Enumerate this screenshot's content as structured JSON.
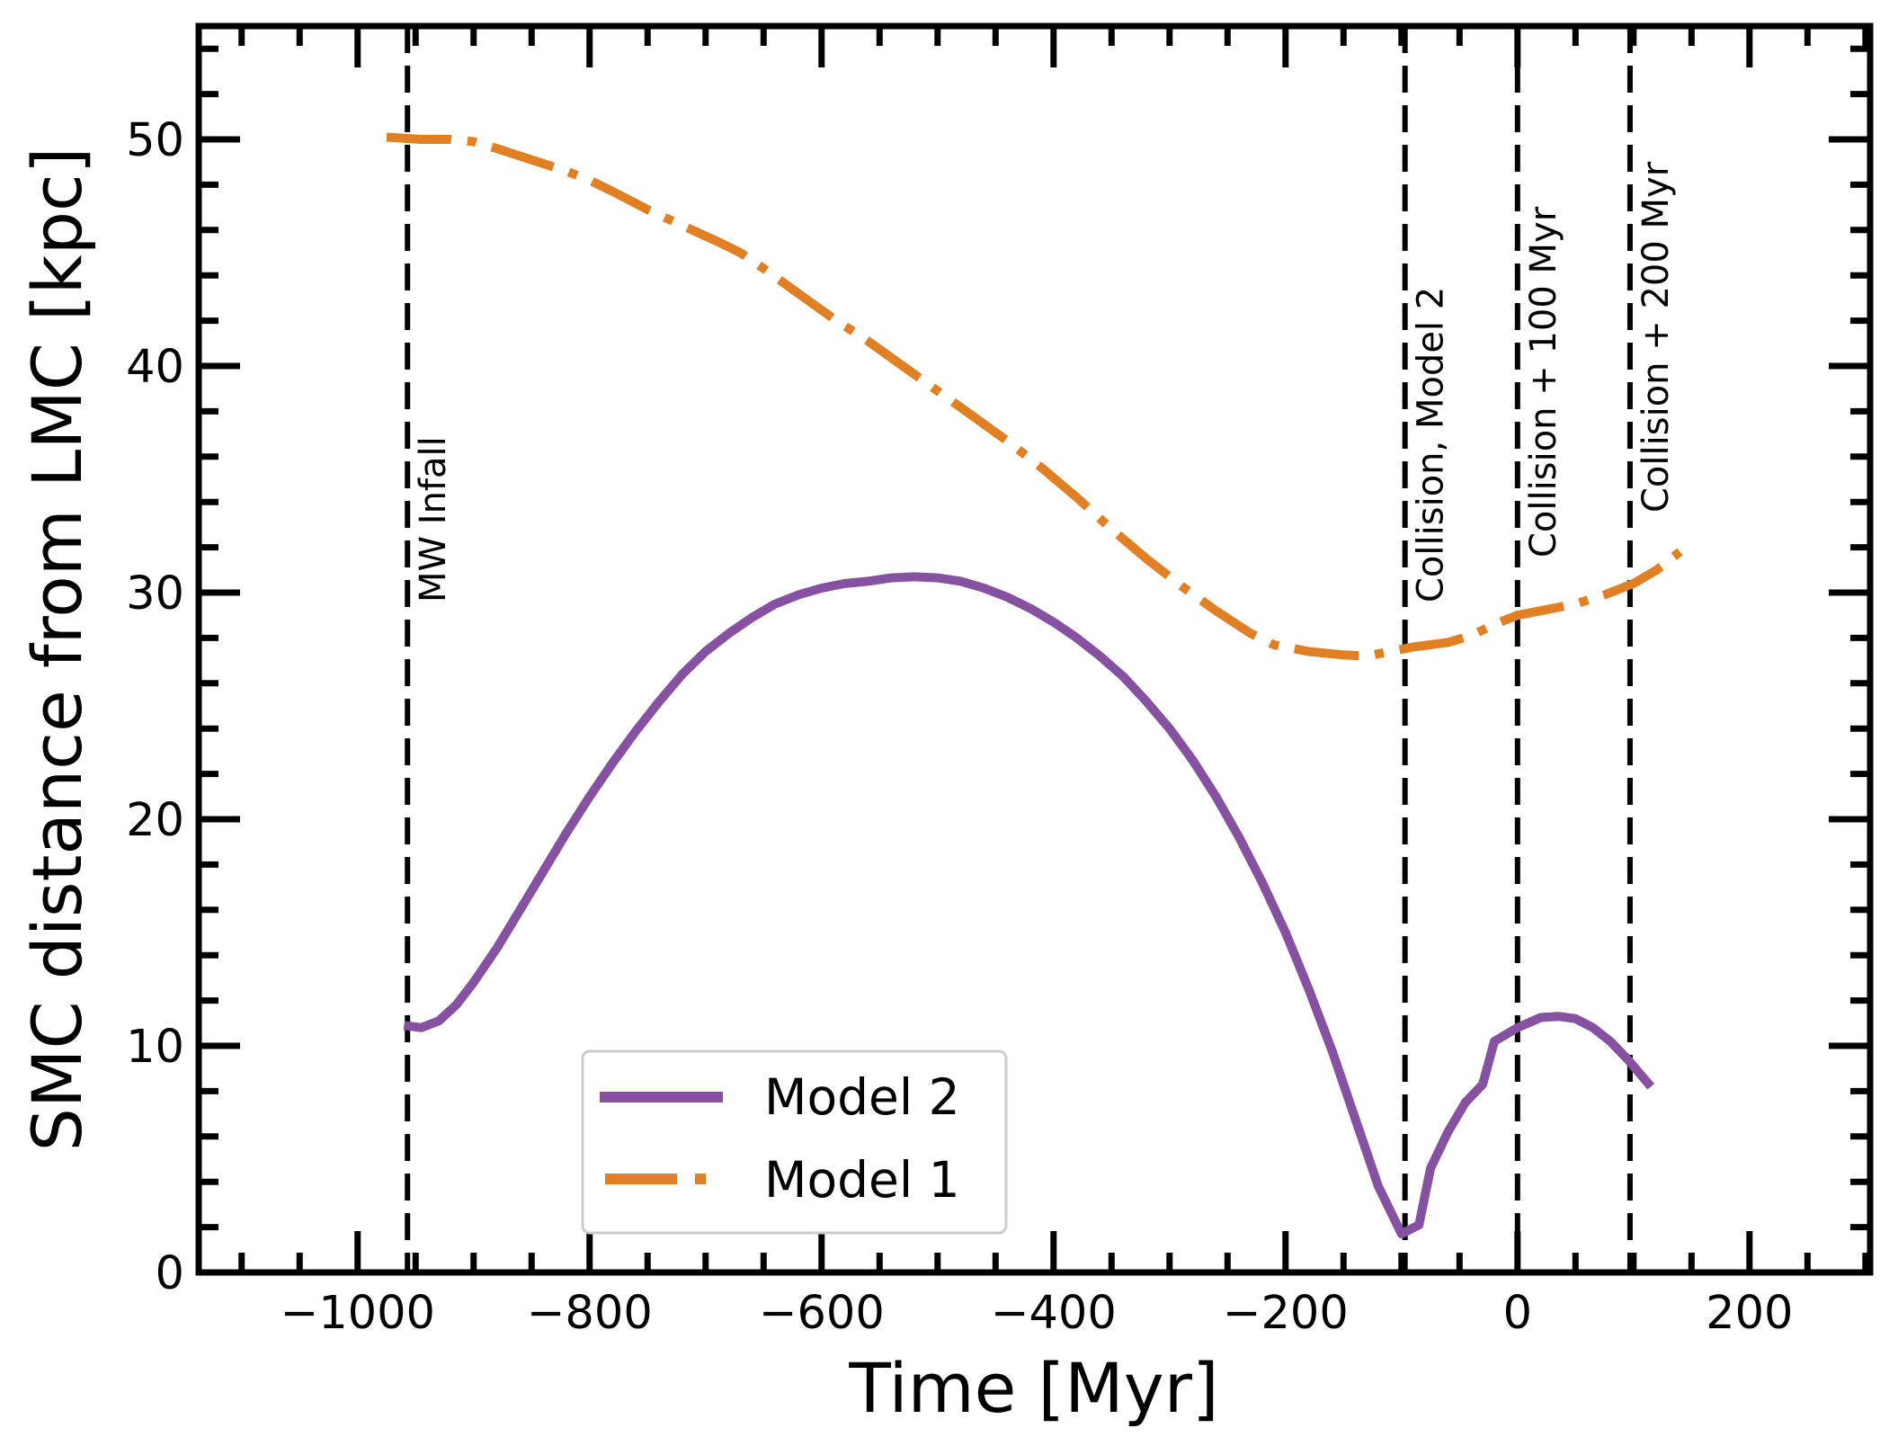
{
  "chart_data": {
    "type": "line",
    "title": "",
    "xlabel": "Time [Myr]",
    "ylabel": "SMC distance from LMC [kpc]",
    "xlim": [
      -1137,
      304
    ],
    "ylim": [
      0,
      55
    ],
    "grid": false,
    "x_major_ticks": [
      -1000,
      -800,
      -600,
      -400,
      -200,
      0,
      200
    ],
    "x_tick_labels": [
      "−1000",
      "−800",
      "−600",
      "−400",
      "−200",
      "0",
      "200"
    ],
    "x_minor_step": 50,
    "y_major_ticks": [
      0,
      10,
      20,
      30,
      40,
      50
    ],
    "y_tick_labels": [
      "0",
      "10",
      "20",
      "30",
      "40",
      "50"
    ],
    "y_minor_step": 2,
    "legend": {
      "placement": "lower-center-left",
      "entries": [
        "Model 2",
        "Model 1"
      ]
    },
    "series": [
      {
        "name": "Model 2",
        "color": "#8551a0",
        "style": "solid",
        "x": [
          -960,
          -945,
          -930,
          -915,
          -900,
          -880,
          -860,
          -840,
          -820,
          -800,
          -780,
          -760,
          -740,
          -720,
          -700,
          -680,
          -660,
          -640,
          -620,
          -600,
          -580,
          -560,
          -540,
          -520,
          -500,
          -480,
          -460,
          -440,
          -420,
          -400,
          -380,
          -360,
          -340,
          -320,
          -300,
          -280,
          -260,
          -240,
          -220,
          -200,
          -180,
          -160,
          -140,
          -120,
          -100,
          -85,
          -75,
          -60,
          -45,
          -30,
          -20,
          0,
          20,
          35,
          50,
          65,
          80,
          95,
          115
        ],
        "y": [
          10.9,
          10.8,
          11.1,
          11.8,
          12.8,
          14.3,
          16.0,
          17.7,
          19.4,
          21.0,
          22.5,
          23.9,
          25.2,
          26.4,
          27.4,
          28.2,
          28.9,
          29.5,
          29.9,
          30.2,
          30.4,
          30.5,
          30.65,
          30.7,
          30.65,
          30.5,
          30.2,
          29.8,
          29.3,
          28.7,
          28.0,
          27.2,
          26.3,
          25.2,
          24.0,
          22.6,
          21.0,
          19.2,
          17.2,
          15.0,
          12.5,
          9.8,
          6.8,
          3.8,
          1.7,
          2.1,
          4.6,
          6.2,
          7.5,
          8.3,
          10.2,
          10.8,
          11.25,
          11.3,
          11.2,
          10.8,
          10.2,
          9.4,
          8.2
        ]
      },
      {
        "name": "Model 1",
        "color": "#e07f23",
        "style": "dashdot",
        "x": [
          -975,
          -945,
          -920,
          -900,
          -880,
          -850,
          -820,
          -800,
          -780,
          -750,
          -720,
          -690,
          -670,
          -650,
          -620,
          -590,
          -560,
          -530,
          -500,
          -470,
          -440,
          -410,
          -380,
          -350,
          -320,
          -290,
          -260,
          -230,
          -210,
          -180,
          -150,
          -130,
          -110,
          -90,
          -60,
          -40,
          -20,
          0,
          20,
          50,
          75,
          100,
          120,
          140
        ],
        "y": [
          50.1,
          50.0,
          50.0,
          49.9,
          49.6,
          49.1,
          48.6,
          48.2,
          47.7,
          46.9,
          46.2,
          45.5,
          45.0,
          44.3,
          43.2,
          42.1,
          41.1,
          40.0,
          38.9,
          37.8,
          36.7,
          35.5,
          34.2,
          32.8,
          31.5,
          30.3,
          29.2,
          28.2,
          27.7,
          27.4,
          27.25,
          27.2,
          27.4,
          27.6,
          27.8,
          28.1,
          28.6,
          29.0,
          29.2,
          29.5,
          29.9,
          30.4,
          31.0,
          31.8
        ]
      }
    ],
    "vertical_lines": [
      {
        "x": -957,
        "label": "MW Infall"
      },
      {
        "x": -97,
        "label": "Collision, Model 2"
      },
      {
        "x": 0,
        "label": "Collision + 100 Myr"
      },
      {
        "x": 97,
        "label": "Collision + 200 Myr"
      }
    ]
  }
}
